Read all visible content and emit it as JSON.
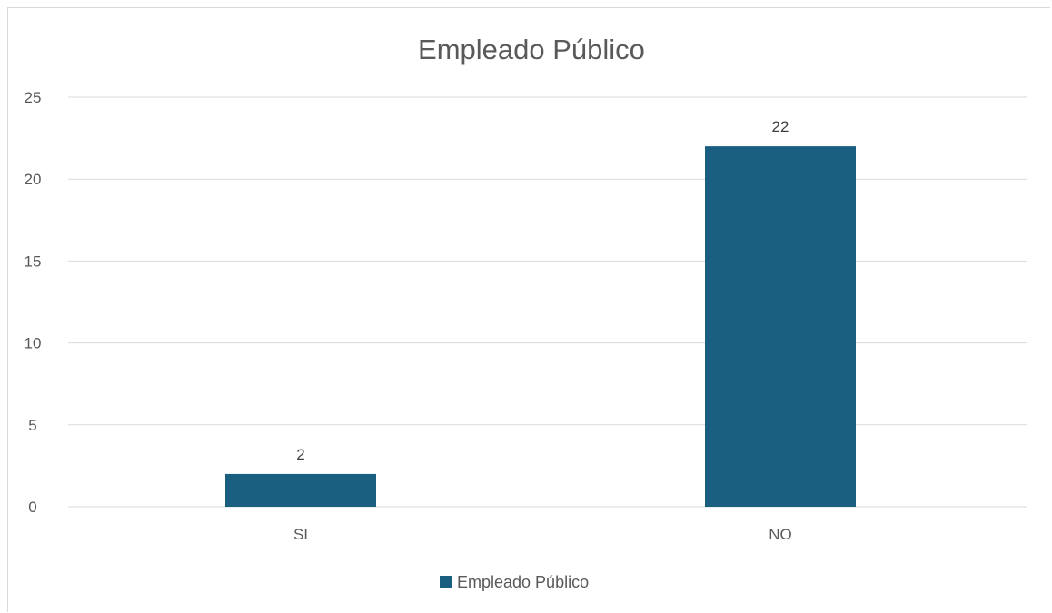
{
  "chart_data": {
    "type": "bar",
    "title": "Empleado Público",
    "categories": [
      "SI",
      "NO"
    ],
    "series": [
      {
        "name": "Empleado Público",
        "values": [
          2,
          22
        ],
        "color": "#1a5e80"
      }
    ],
    "data_labels": [
      "2",
      "22"
    ],
    "ylim": [
      0,
      25
    ],
    "yticks": [
      0,
      5,
      10,
      15,
      20,
      25
    ],
    "ytick_labels": [
      "0",
      "5",
      "10",
      "15",
      "20",
      "25"
    ],
    "grid": true,
    "legend_position": "bottom",
    "colors": {
      "bar": "#1a5e80",
      "grid": "#d9d9d9",
      "text": "#595959"
    }
  }
}
